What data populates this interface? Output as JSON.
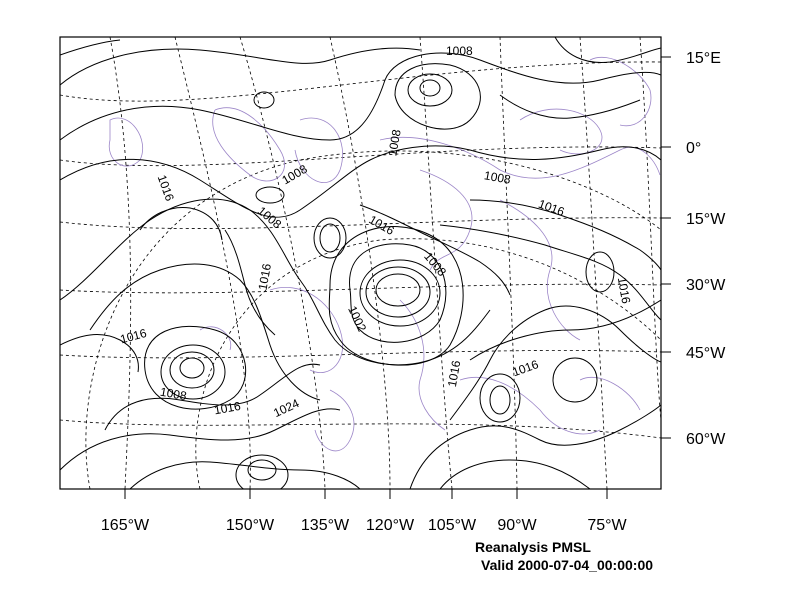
{
  "map": {
    "right_axis_labels": [
      "15°E",
      "0°",
      "15°W",
      "30°W",
      "45°W",
      "60°W"
    ],
    "bottom_axis_labels": [
      "165°W",
      "150°W",
      "135°W",
      "120°W",
      "105°W",
      "90°W",
      "75°W"
    ],
    "contour_labels": [
      "1008",
      "1008",
      "1008",
      "1008",
      "1008",
      "1016",
      "1016",
      "1016",
      "1016",
      "1016",
      "1016",
      "1016",
      "1016",
      "1008",
      "1002",
      "1008",
      "1016",
      "1024"
    ],
    "contour_color": "#000000",
    "coastline_color": "#9c86c8",
    "grid_style": "dashed"
  },
  "caption": {
    "title": "Reanalysis PMSL",
    "valid": "Valid 2000-07-04_00:00:00"
  }
}
